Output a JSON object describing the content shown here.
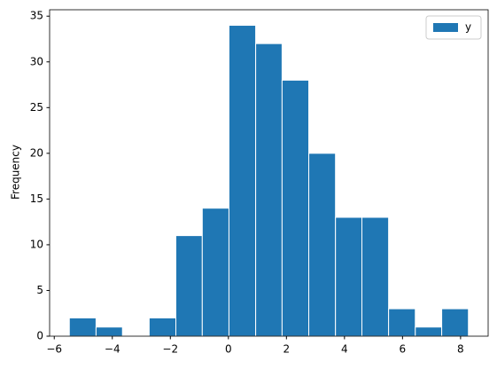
{
  "chart_data": {
    "type": "histogram",
    "y_label": "Frequency",
    "bins": [
      -5.48,
      -4.56,
      -3.65,
      -2.73,
      -1.81,
      -0.9,
      0.02,
      0.94,
      1.85,
      2.77,
      3.69,
      4.6,
      5.52,
      6.44,
      7.35,
      8.27
    ],
    "series": [
      {
        "name": "y",
        "color": "#1f77b4",
        "counts": [
          2,
          1,
          0,
          2,
          11,
          14,
          34,
          32,
          28,
          20,
          13,
          13,
          3,
          1,
          3
        ]
      }
    ],
    "xlim": [
      -6.16,
      8.95
    ],
    "xticks": [
      {
        "value": -6,
        "label": "−6"
      },
      {
        "value": -4,
        "label": "−4"
      },
      {
        "value": -2,
        "label": "−2"
      },
      0,
      2,
      4,
      6,
      8
    ],
    "ylim": [
      0,
      35.7
    ],
    "yticks": [
      0,
      5,
      10,
      15,
      20,
      25,
      30,
      35
    ],
    "grid": false,
    "legend": "upper right"
  }
}
